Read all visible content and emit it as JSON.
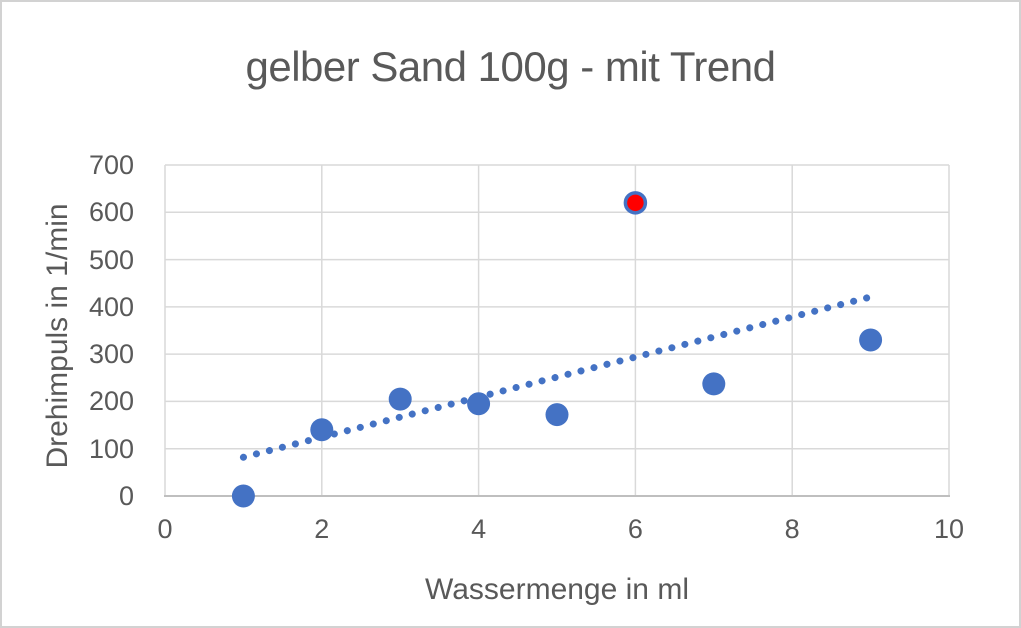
{
  "chart_data": {
    "type": "scatter",
    "title": "gelber Sand 100g - mit Trend",
    "xlabel": "Wassermenge in ml",
    "ylabel": "Drehimpuls in 1/min",
    "xlim": [
      0,
      10
    ],
    "ylim": [
      0,
      700
    ],
    "x_ticks": [
      0,
      2,
      4,
      6,
      8,
      10
    ],
    "y_ticks": [
      0,
      100,
      200,
      300,
      400,
      500,
      600,
      700
    ],
    "grid": true,
    "legend_position": "none",
    "series": [
      {
        "name": "measurements",
        "type": "scatter",
        "color": "#4472C4",
        "points": [
          [
            1,
            0
          ],
          [
            2,
            140
          ],
          [
            3,
            205
          ],
          [
            4,
            195
          ],
          [
            5,
            172
          ],
          [
            7,
            237
          ],
          [
            9,
            330
          ]
        ]
      },
      {
        "name": "highlighted-measurement",
        "type": "scatter",
        "color": "#FF0000",
        "outline": "#4472C4",
        "points": [
          [
            6,
            620
          ]
        ]
      },
      {
        "name": "trendline",
        "type": "dotted-line",
        "color": "#4472C4",
        "x": [
          1,
          9
        ],
        "y": [
          82,
          421
        ]
      }
    ],
    "colors": {
      "text": "#595959",
      "grid": "#D9D9D9",
      "axis": "#BFBFBF",
      "marker": "#4472C4",
      "outlier": "#FF0000"
    }
  }
}
